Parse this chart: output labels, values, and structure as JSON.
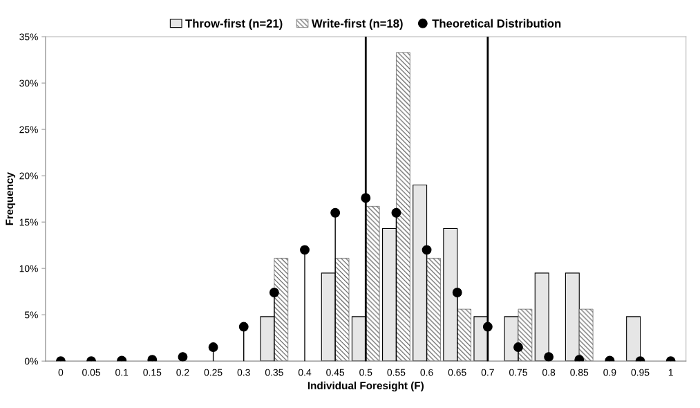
{
  "chart_data": {
    "type": "bar",
    "xlabel": "Individual Foresight (F)",
    "ylabel": "Frequency",
    "x": [
      0,
      0.05,
      0.1,
      0.15,
      0.2,
      0.25,
      0.3,
      0.35,
      0.4,
      0.45,
      0.5,
      0.55,
      0.6,
      0.65,
      0.7,
      0.75,
      0.8,
      0.85,
      0.9,
      0.95,
      1
    ],
    "series": [
      {
        "name": "Throw-first (n=21)",
        "color": "#e6e6e6",
        "values": [
          null,
          null,
          null,
          null,
          null,
          null,
          null,
          4.8,
          null,
          9.5,
          4.8,
          14.3,
          19.0,
          14.3,
          4.8,
          4.8,
          9.5,
          9.5,
          null,
          4.8,
          null
        ]
      },
      {
        "name": "Write-first (n=18)",
        "color": "#555555",
        "values": [
          null,
          null,
          null,
          null,
          null,
          null,
          null,
          11.1,
          null,
          11.1,
          16.7,
          33.3,
          11.1,
          5.6,
          null,
          5.6,
          null,
          5.6,
          null,
          null,
          null
        ]
      },
      {
        "name": "Theoretical Distribution",
        "type": "lollipop",
        "color": "#000000",
        "marker": "circle",
        "values": [
          0,
          0,
          0.05,
          0.15,
          0.45,
          1.5,
          3.7,
          7.4,
          12.0,
          16.0,
          17.6,
          16.0,
          12.0,
          7.4,
          3.7,
          1.5,
          0.45,
          0.15,
          0.05,
          0,
          0
        ]
      }
    ],
    "xlim": [
      -0.025,
      1.025
    ],
    "xticks": [
      0,
      0.05,
      0.1,
      0.15,
      0.2,
      0.25,
      0.3,
      0.35,
      0.4,
      0.45,
      0.5,
      0.55,
      0.6,
      0.65,
      0.7,
      0.75,
      0.8,
      0.85,
      0.9,
      0.95,
      1
    ],
    "ylim": [
      0,
      35
    ],
    "yticks": [
      {
        "value": 0,
        "label": "0%"
      },
      {
        "value": 5,
        "label": "5%"
      },
      {
        "value": 10,
        "label": "10%"
      },
      {
        "value": 15,
        "label": "15%"
      },
      {
        "value": 20,
        "label": "20%"
      },
      {
        "value": 25,
        "label": "25%"
      },
      {
        "value": 30,
        "label": "30%"
      },
      {
        "value": 35,
        "label": "35%"
      }
    ],
    "ref_lines": [
      {
        "axis": "x",
        "value": 0.5,
        "color": "#000000"
      },
      {
        "axis": "x",
        "value": 0.7,
        "color": "#000000"
      }
    ],
    "legend": "top",
    "grid": false
  }
}
